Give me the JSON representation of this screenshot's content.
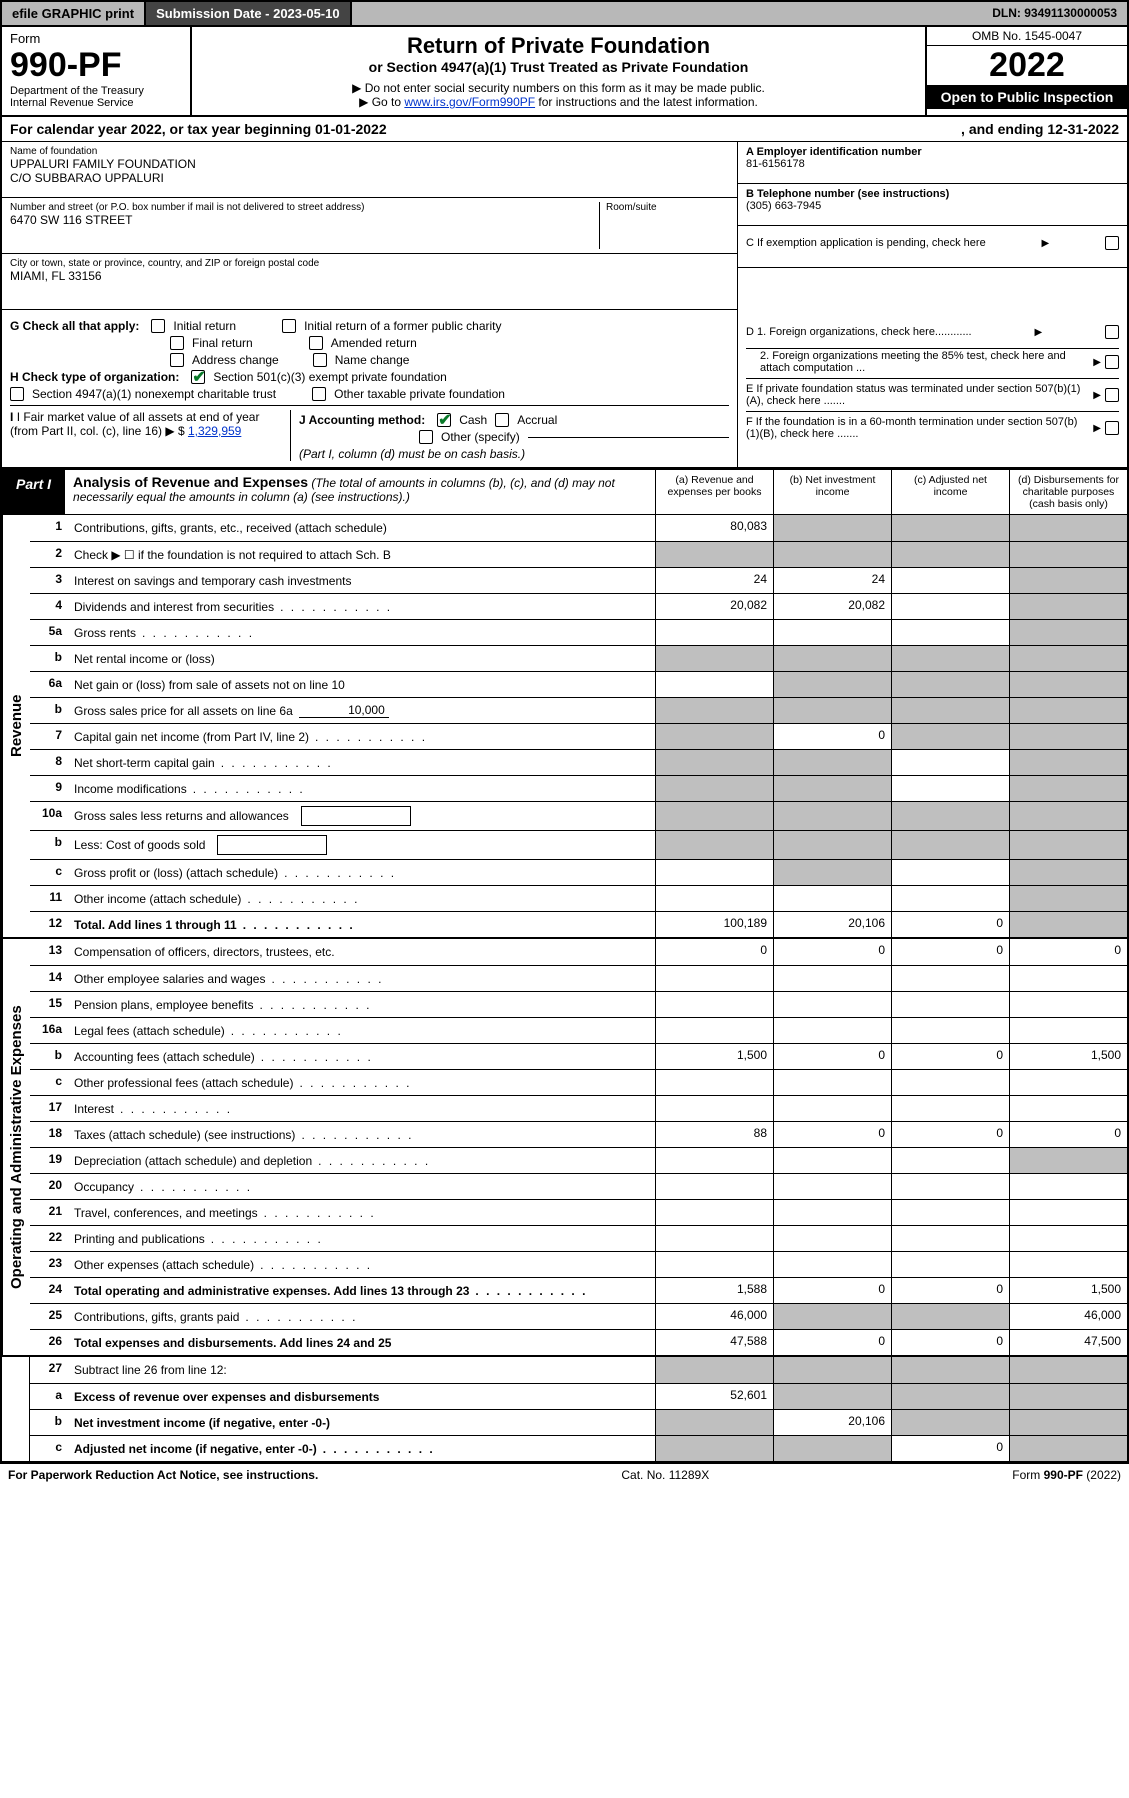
{
  "topbar": {
    "efile": "efile GRAPHIC print",
    "submission": "Submission Date - 2023-05-10",
    "dln": "DLN: 93491130000053"
  },
  "header": {
    "form_word": "Form",
    "form_no": "990-PF",
    "dept": "Department of the Treasury\nInternal Revenue Service",
    "title1": "Return of Private Foundation",
    "title2": "or Section 4947(a)(1) Trust Treated as Private Foundation",
    "bullet1": "▶ Do not enter social security numbers on this form as it may be made public.",
    "bullet2_pre": "▶ Go to ",
    "bullet2_link": "www.irs.gov/Form990PF",
    "bullet2_post": " for instructions and the latest information.",
    "omb": "OMB No. 1545-0047",
    "year": "2022",
    "inspect": "Open to Public Inspection"
  },
  "calyear": {
    "text": "For calendar year 2022, or tax year beginning 01-01-2022",
    "end": ", and ending 12-31-2022"
  },
  "info": {
    "name_lbl": "Name of foundation",
    "name_val": "UPPALURI FAMILY FOUNDATION\nC/O SUBBARAO UPPALURI",
    "addr_lbl": "Number and street (or P.O. box number if mail is not delivered to street address)",
    "addr_val": "6470 SW 116 STREET",
    "room_lbl": "Room/suite",
    "city_lbl": "City or town, state or province, country, and ZIP or foreign postal code",
    "city_val": "MIAMI, FL  33156",
    "A_lbl": "A Employer identification number",
    "A_val": "81-6156178",
    "B_lbl": "B Telephone number (see instructions)",
    "B_val": "(305) 663-7945",
    "C_lbl": "C If exemption application is pending, check here",
    "D1": "D 1. Foreign organizations, check here............",
    "D2": "2. Foreign organizations meeting the 85% test, check here and attach computation ...",
    "E": "E  If private foundation status was terminated under section 507(b)(1)(A), check here .......",
    "F": "F  If the foundation is in a 60-month termination under section 507(b)(1)(B), check here ......."
  },
  "G": {
    "lead": "G Check all that apply:",
    "opts": [
      "Initial return",
      "Final return",
      "Address change",
      "Initial return of a former public charity",
      "Amended return",
      "Name change"
    ]
  },
  "H": {
    "lead": "H Check type of organization:",
    "opt1": "Section 501(c)(3) exempt private foundation",
    "opt2": "Section 4947(a)(1) nonexempt charitable trust",
    "opt3": "Other taxable private foundation"
  },
  "I": {
    "lead": "I Fair market value of all assets at end of year (from Part II, col. (c), line 16)",
    "val": "1,329,959"
  },
  "J": {
    "lead": "J Accounting method:",
    "cash": "Cash",
    "accrual": "Accrual",
    "other": "Other (specify)",
    "note": "(Part I, column (d) must be on cash basis.)"
  },
  "part1": {
    "tab": "Part I",
    "title": "Analysis of Revenue and Expenses",
    "sub": "(The total of amounts in columns (b), (c), and (d) may not necessarily equal the amounts in column (a) (see instructions).)",
    "col_a": "(a)  Revenue and expenses per books",
    "col_b": "(b)  Net investment income",
    "col_c": "(c)  Adjusted net income",
    "col_d": "(d)  Disbursements for charitable purposes (cash basis only)"
  },
  "vlabels": {
    "rev": "Revenue",
    "exp": "Operating and Administrative Expenses"
  },
  "rows": {
    "1": {
      "d": "Contributions, gifts, grants, etc., received (attach schedule)",
      "a": "80,083"
    },
    "2": {
      "d": "Check ▶ ☐ if the foundation is not required to attach Sch. B"
    },
    "3": {
      "d": "Interest on savings and temporary cash investments",
      "a": "24",
      "b": "24"
    },
    "4": {
      "d": "Dividends and interest from securities",
      "a": "20,082",
      "b": "20,082"
    },
    "5a": {
      "d": "Gross rents"
    },
    "5b": {
      "d": "Net rental income or (loss)"
    },
    "6a": {
      "d": "Net gain or (loss) from sale of assets not on line 10"
    },
    "6b": {
      "d": "Gross sales price for all assets on line 6a",
      "inline": "10,000"
    },
    "7": {
      "d": "Capital gain net income (from Part IV, line 2)",
      "b": "0"
    },
    "8": {
      "d": "Net short-term capital gain"
    },
    "9": {
      "d": "Income modifications"
    },
    "10a": {
      "d": "Gross sales less returns and allowances"
    },
    "10b": {
      "d": "Less: Cost of goods sold"
    },
    "10c": {
      "d": "Gross profit or (loss) (attach schedule)"
    },
    "11": {
      "d": "Other income (attach schedule)"
    },
    "12": {
      "d": "Total. Add lines 1 through 11",
      "a": "100,189",
      "b": "20,106",
      "c": "0"
    },
    "13": {
      "d": "Compensation of officers, directors, trustees, etc.",
      "a": "0",
      "b": "0",
      "c": "0",
      "dd": "0"
    },
    "14": {
      "d": "Other employee salaries and wages"
    },
    "15": {
      "d": "Pension plans, employee benefits"
    },
    "16a": {
      "d": "Legal fees (attach schedule)"
    },
    "16b": {
      "d": "Accounting fees (attach schedule)",
      "a": "1,500",
      "b": "0",
      "c": "0",
      "dd": "1,500"
    },
    "16c": {
      "d": "Other professional fees (attach schedule)"
    },
    "17": {
      "d": "Interest"
    },
    "18": {
      "d": "Taxes (attach schedule) (see instructions)",
      "a": "88",
      "b": "0",
      "c": "0",
      "dd": "0"
    },
    "19": {
      "d": "Depreciation (attach schedule) and depletion"
    },
    "20": {
      "d": "Occupancy"
    },
    "21": {
      "d": "Travel, conferences, and meetings"
    },
    "22": {
      "d": "Printing and publications"
    },
    "23": {
      "d": "Other expenses (attach schedule)"
    },
    "24": {
      "d": "Total operating and administrative expenses. Add lines 13 through 23",
      "a": "1,588",
      "b": "0",
      "c": "0",
      "dd": "1,500"
    },
    "25": {
      "d": "Contributions, gifts, grants paid",
      "a": "46,000",
      "dd": "46,000"
    },
    "26": {
      "d": "Total expenses and disbursements. Add lines 24 and 25",
      "a": "47,588",
      "b": "0",
      "c": "0",
      "dd": "47,500"
    },
    "27": {
      "d": "Subtract line 26 from line 12:"
    },
    "27a": {
      "d": "Excess of revenue over expenses and disbursements",
      "a": "52,601"
    },
    "27b": {
      "d": "Net investment income (if negative, enter -0-)",
      "b": "20,106"
    },
    "27c": {
      "d": "Adjusted net income (if negative, enter -0-)",
      "c": "0"
    }
  },
  "footer": {
    "left": "For Paperwork Reduction Act Notice, see instructions.",
    "mid": "Cat. No. 11289X",
    "right": "Form 990-PF (2022)"
  }
}
